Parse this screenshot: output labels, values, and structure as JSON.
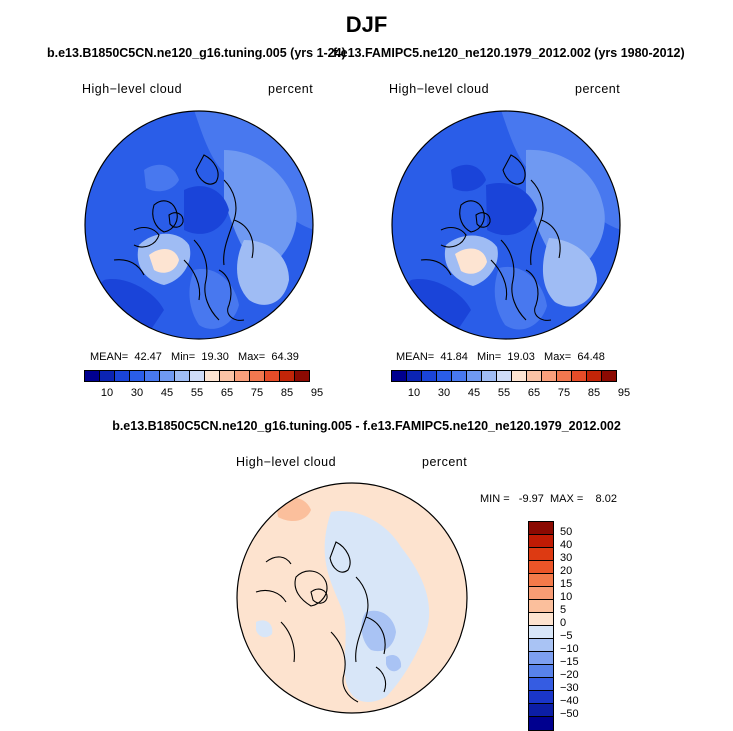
{
  "figure": {
    "season": "DJF",
    "panel1": {
      "case": "b.e13.B1850C5CN.ne120_g16.tuning.005 (yrs 1-24)",
      "variable": "High−level cloud",
      "units": "percent",
      "mean_label": "MEAN=",
      "mean": "42.47",
      "min_label": "Min=",
      "min": "19.30",
      "max_label": "Max=",
      "max": "64.39"
    },
    "panel2": {
      "case": "f.e13.FAMIPC5.ne120_ne120.1979_2012.002 (yrs 1980-2012)",
      "variable": "High−level cloud",
      "units": "percent",
      "mean_label": "MEAN=",
      "mean": "41.84",
      "min_label": "Min=",
      "min": "19.03",
      "max_label": "Max=",
      "max": "64.48"
    },
    "diff": {
      "title": "b.e13.B1850C5CN.ne120_g16.tuning.005 - f.e13.FAMIPC5.ne120_ne120.1979_2012.002",
      "variable": "High−level cloud",
      "units": "percent",
      "minmax": "MIN =   -9.97  MAX =    8.02"
    }
  },
  "colorbar_abs": {
    "tick_labels": [
      "10",
      "30",
      "45",
      "55",
      "65",
      "75",
      "85",
      "95"
    ],
    "colors": [
      "#00008f",
      "#0b24b4",
      "#1a44d9",
      "#2a5de8",
      "#4878ef",
      "#6f99f2",
      "#9fbcf4",
      "#cfdcf7",
      "#fde4d2",
      "#fbc3a5",
      "#f99f7b",
      "#f2784f",
      "#e64c28",
      "#c22508",
      "#8b0a02"
    ]
  },
  "colorbar_diff": {
    "tick_labels": [
      "50",
      "40",
      "30",
      "20",
      "15",
      "10",
      "5",
      "0",
      "−5",
      "−10",
      "−15",
      "−20",
      "−30",
      "−40",
      "−50"
    ],
    "colors": [
      "#8b0a02",
      "#c01b04",
      "#dd3a12",
      "#ec5528",
      "#f47a4a",
      "#f89c74",
      "#fbbf9c",
      "#fde3cf",
      "#d8e6f8",
      "#a9c3f4",
      "#7d9ff0",
      "#5882ea",
      "#355ce2",
      "#1a36c9",
      "#0c1ea6",
      "#00008f"
    ]
  }
}
